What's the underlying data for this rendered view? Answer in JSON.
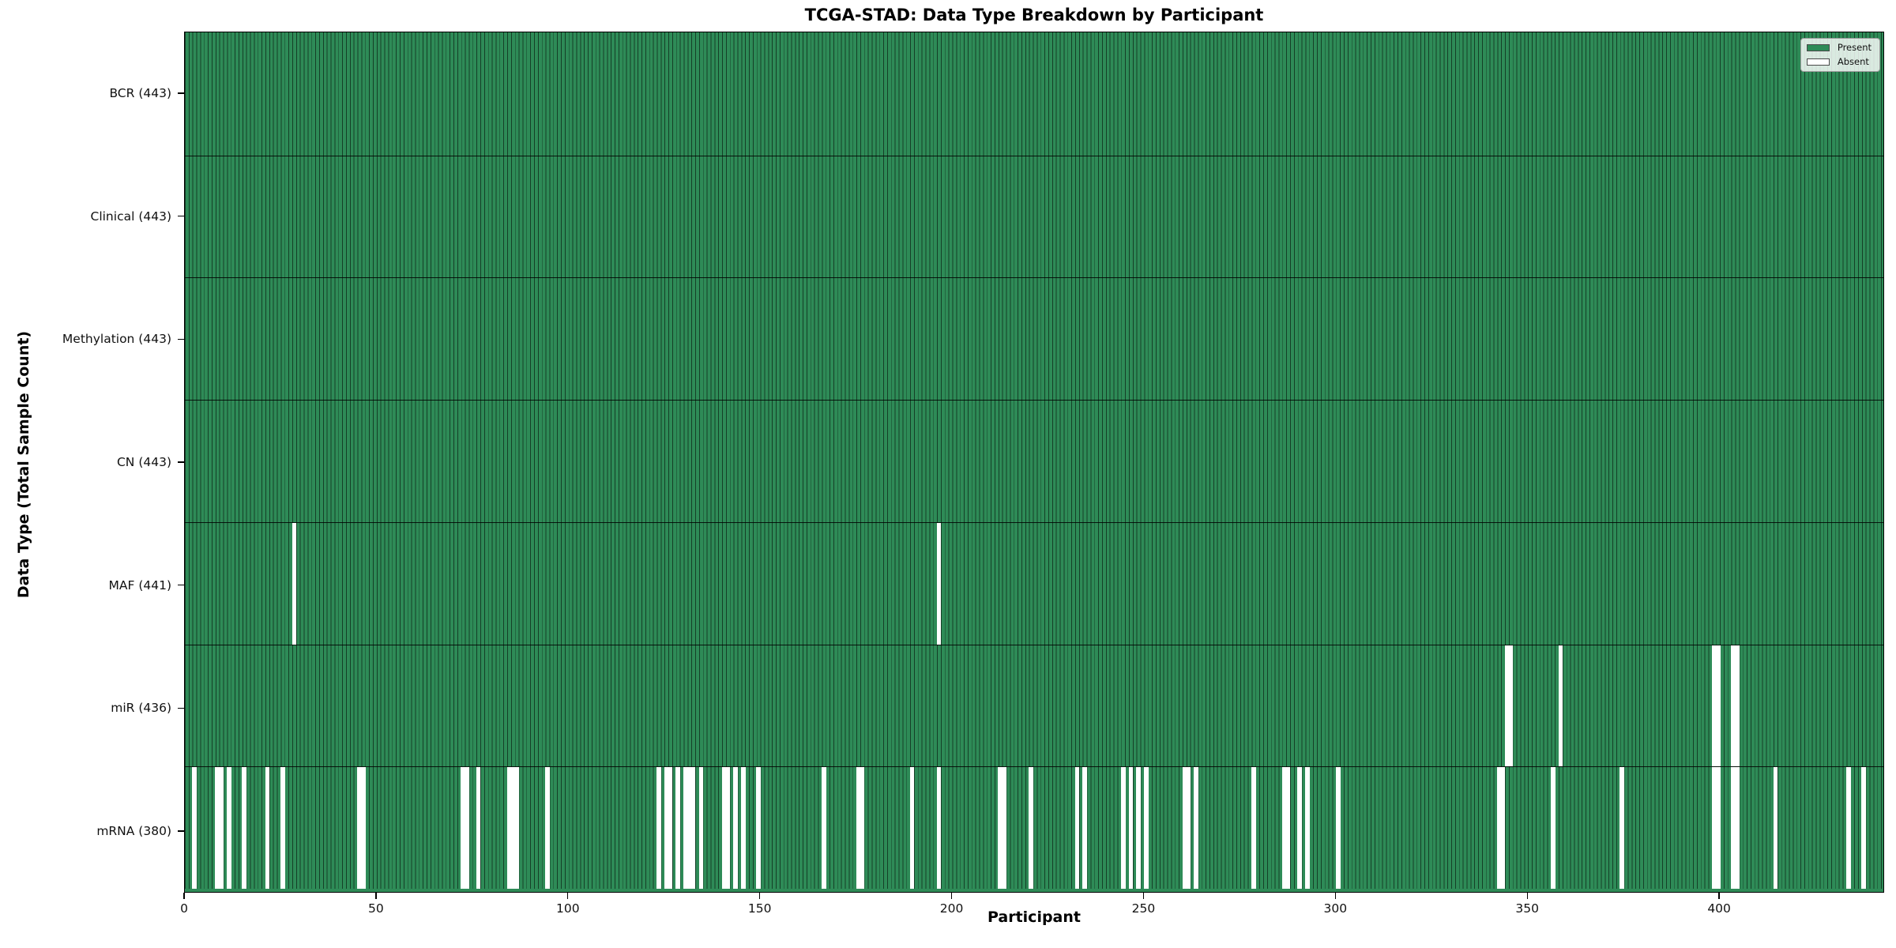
{
  "figure": {
    "kind": "matplotlib-style presence heatmap"
  },
  "chart_data": {
    "type": "heatmap",
    "title": "TCGA-STAD: Data Type Breakdown by Participant",
    "xlabel": "Participant",
    "ylabel": "Data Type (Total Sample Count)",
    "x_axis": {
      "min": 0,
      "max": 443,
      "ticks": [
        0,
        50,
        100,
        150,
        200,
        250,
        300,
        350,
        400
      ]
    },
    "n_participants": 443,
    "legend_items": [
      {
        "label": "Present",
        "color": "#2e8b57"
      },
      {
        "label": "Absent",
        "color": "#ffffff"
      }
    ],
    "colors": {
      "present": "#2e8b57",
      "absent": "#ffffff",
      "bar_edge": "rgba(0,0,0,0.55)",
      "row_separator": "rgba(0,0,0,0.85)"
    },
    "rows": [
      {
        "data_type": "BCR",
        "label": "BCR (443)",
        "present_count": 443,
        "absent_count": 0,
        "absent_participants": []
      },
      {
        "data_type": "Clinical",
        "label": "Clinical (443)",
        "present_count": 443,
        "absent_count": 0,
        "absent_participants": []
      },
      {
        "data_type": "Methylation",
        "label": "Methylation (443)",
        "present_count": 443,
        "absent_count": 0,
        "absent_participants": []
      },
      {
        "data_type": "CN",
        "label": "CN (443)",
        "present_count": 443,
        "absent_count": 0,
        "absent_participants": []
      },
      {
        "data_type": "MAF",
        "label": "MAF (441)",
        "present_count": 441,
        "absent_count": 2,
        "absent_participants": [
          28,
          196
        ]
      },
      {
        "data_type": "miR",
        "label": "miR (436)",
        "present_count": 436,
        "absent_count": 7,
        "absent_participants": [
          344,
          345,
          358,
          398,
          399,
          403,
          404
        ]
      },
      {
        "data_type": "mRNA",
        "label": "mRNA (380)",
        "present_count": 380,
        "absent_count": 63,
        "absent_participants": [
          2,
          8,
          9,
          11,
          15,
          21,
          25,
          45,
          46,
          72,
          73,
          76,
          84,
          85,
          86,
          94,
          123,
          125,
          126,
          128,
          130,
          131,
          132,
          134,
          140,
          141,
          143,
          145,
          149,
          166,
          175,
          176,
          189,
          196,
          212,
          213,
          220,
          232,
          234,
          244,
          246,
          248,
          250,
          260,
          261,
          263,
          278,
          286,
          287,
          290,
          292,
          300,
          342,
          343,
          356,
          374,
          398,
          399,
          403,
          404,
          414,
          433,
          437
        ]
      }
    ]
  }
}
